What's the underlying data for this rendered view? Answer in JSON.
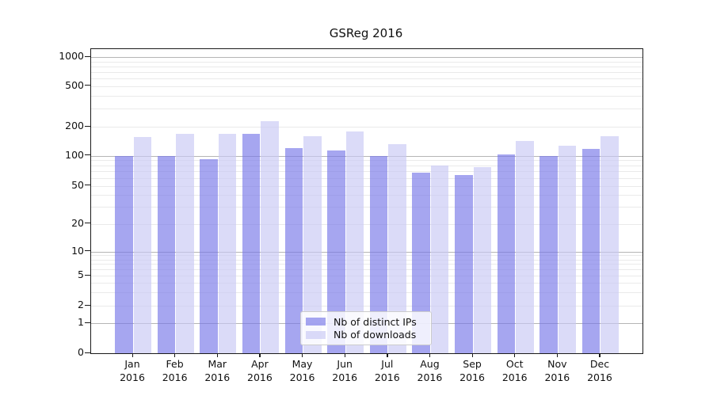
{
  "chart_data": {
    "type": "bar",
    "title": "GSReg 2016",
    "categories": [
      "Jan 2016",
      "Feb 2016",
      "Mar 2016",
      "Apr 2016",
      "May 2016",
      "Jun 2016",
      "Jul 2016",
      "Aug 2016",
      "Sep 2016",
      "Oct 2016",
      "Nov 2016",
      "Dec 2016"
    ],
    "series": [
      {
        "name": "Nb of distinct IPs",
        "color": "#7676e8",
        "alpha": 0.65,
        "values": [
          100,
          100,
          92,
          168,
          120,
          114,
          100,
          68,
          64,
          103,
          100,
          117
        ]
      },
      {
        "name": "Nb of downloads",
        "color": "#c8c8f4",
        "alpha": 0.65,
        "values": [
          157,
          167,
          167,
          228,
          159,
          179,
          131,
          79,
          77,
          142,
          127,
          158
        ]
      }
    ],
    "yscale": "symlog",
    "ylim": [
      0,
      1500
    ],
    "ytick_values": [
      0,
      1,
      2,
      5,
      10,
      20,
      50,
      100,
      200,
      500,
      1000
    ],
    "ytick_labels": [
      "0",
      "1",
      "2",
      "5",
      "10",
      "20",
      "50",
      "100",
      "200",
      "500",
      "1000"
    ],
    "grid": "on",
    "grid_major_values": [
      1,
      10,
      100,
      1000
    ],
    "grid_minor_values": [
      2,
      3,
      4,
      5,
      6,
      7,
      8,
      9,
      20,
      30,
      40,
      50,
      60,
      70,
      80,
      90,
      200,
      300,
      400,
      500,
      600,
      700,
      800,
      900
    ],
    "legend_position": "lower center",
    "xlabel": "",
    "ylabel": ""
  }
}
